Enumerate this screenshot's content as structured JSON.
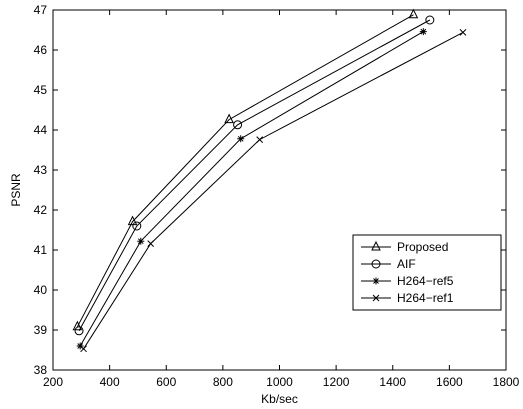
{
  "chart_data": {
    "type": "line",
    "title": "",
    "xlabel": "Kb/sec",
    "ylabel": "PSNR",
    "xlim": [
      200,
      1800
    ],
    "ylim": [
      38,
      47
    ],
    "xticks": [
      200,
      400,
      600,
      800,
      1000,
      1200,
      1400,
      1600,
      1800
    ],
    "yticks": [
      38,
      39,
      40,
      41,
      42,
      43,
      44,
      45,
      46,
      47
    ],
    "grid": false,
    "legend_position": "lower-right",
    "series": [
      {
        "name": "Proposed",
        "marker": "triangle",
        "x": [
          286,
          481,
          822,
          1473
        ],
        "y": [
          39.08,
          41.71,
          44.26,
          46.88
        ]
      },
      {
        "name": "AIF",
        "marker": "circle",
        "x": [
          292,
          496,
          852,
          1531
        ],
        "y": [
          38.98,
          41.6,
          44.13,
          46.75
        ]
      },
      {
        "name": "H264−ref5",
        "marker": "star",
        "x": [
          296,
          510,
          863,
          1508
        ],
        "y": [
          38.6,
          41.22,
          43.78,
          46.46
        ]
      },
      {
        "name": "H264−ref1",
        "marker": "x",
        "x": [
          308,
          545,
          930,
          1648
        ],
        "y": [
          38.53,
          41.16,
          43.76,
          46.44
        ]
      }
    ]
  }
}
